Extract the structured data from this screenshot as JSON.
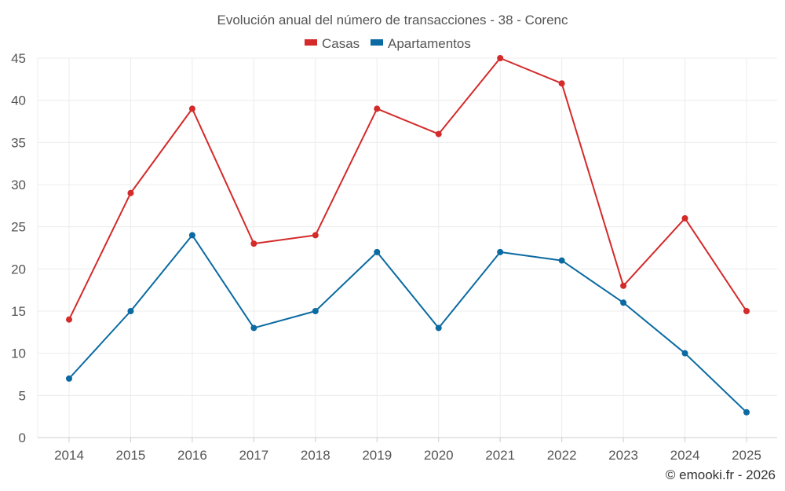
{
  "chart_data": {
    "type": "line",
    "title": "Evolución anual del número de transacciones - 38 - Corenc",
    "categories": [
      "2014",
      "2015",
      "2016",
      "2017",
      "2018",
      "2019",
      "2020",
      "2021",
      "2022",
      "2023",
      "2024",
      "2025"
    ],
    "series": [
      {
        "name": "Casas",
        "color": "#d42a2a",
        "values": [
          14,
          29,
          39,
          23,
          24,
          39,
          36,
          45,
          42,
          18,
          26,
          15
        ]
      },
      {
        "name": "Apartamentos",
        "color": "#0a6aa1",
        "values": [
          7,
          15,
          24,
          13,
          15,
          22,
          13,
          22,
          21,
          16,
          10,
          3
        ]
      }
    ],
    "ylim": [
      0,
      45
    ],
    "yticks": [
      0,
      5,
      10,
      15,
      20,
      25,
      30,
      35,
      40,
      45
    ],
    "xlabel": "",
    "ylabel": "",
    "grid": true,
    "legend_position": "top-center",
    "credit": "© emooki.fr - 2026"
  }
}
